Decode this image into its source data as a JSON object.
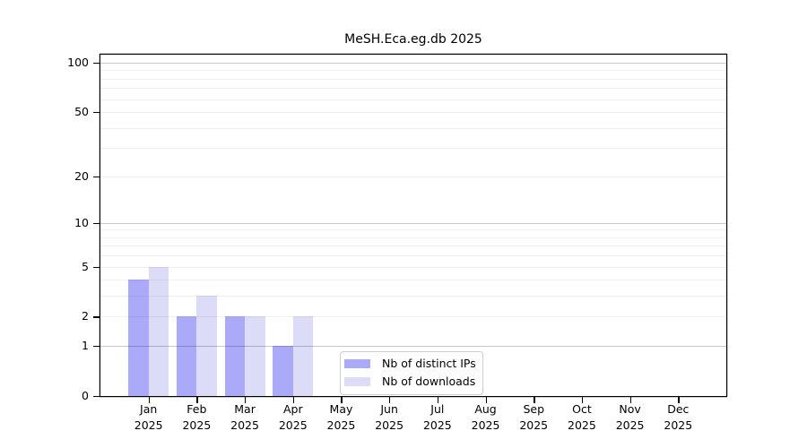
{
  "chart_data": {
    "type": "bar",
    "title": "MeSH.Eca.eg.db 2025",
    "categories": [
      "Jan 2025",
      "Feb 2025",
      "Mar 2025",
      "Apr 2025",
      "May 2025",
      "Jun 2025",
      "Jul 2025",
      "Aug 2025",
      "Sep 2025",
      "Oct 2025",
      "Nov 2025",
      "Dec 2025"
    ],
    "series": [
      {
        "name": "Nb of distinct IPs",
        "color": "#aaaaf8",
        "values": [
          4,
          2,
          2,
          1,
          0,
          0,
          0,
          0,
          0,
          0,
          0,
          0
        ]
      },
      {
        "name": "Nb of downloads",
        "color": "#dcdcf8",
        "values": [
          5,
          3,
          2,
          2,
          0,
          0,
          0,
          0,
          0,
          0,
          0,
          0
        ]
      }
    ],
    "xlabel": "",
    "ylabel": "",
    "y_scale": "log1p",
    "y_ticks": [
      0,
      1,
      2,
      5,
      10,
      20,
      50,
      100
    ],
    "y_max": 100,
    "ylim": [
      0,
      100
    ],
    "grid": true,
    "legend_position": "bottom-center",
    "colors": {
      "axis": "#000000",
      "major_gridline": "rgba(0,0,0,0.22)",
      "minor_gridline": "rgba(0,0,0,0.055)",
      "legend_border": "#cccccc",
      "background": "#ffffff"
    }
  }
}
